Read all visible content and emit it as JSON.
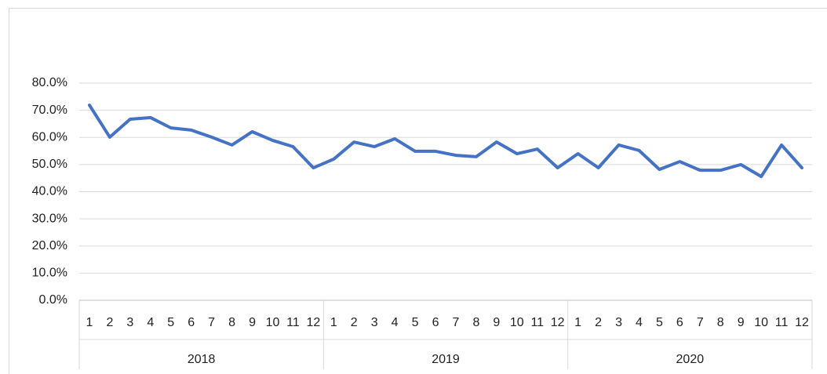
{
  "chart_data": {
    "type": "line",
    "categories": [
      "1",
      "2",
      "3",
      "4",
      "5",
      "6",
      "7",
      "8",
      "9",
      "10",
      "11",
      "12",
      "1",
      "2",
      "3",
      "4",
      "5",
      "6",
      "7",
      "8",
      "9",
      "10",
      "11",
      "12",
      "1",
      "2",
      "3",
      "4",
      "5",
      "6",
      "7",
      "8",
      "9",
      "10",
      "11",
      "12"
    ],
    "groups": [
      "2018",
      "2019",
      "2020"
    ],
    "values": [
      71.9,
      60.1,
      66.7,
      67.3,
      63.5,
      62.7,
      60.1,
      57.2,
      62.1,
      58.9,
      56.6,
      48.8,
      52.0,
      58.3,
      56.6,
      59.5,
      54.9,
      54.9,
      53.4,
      52.9,
      58.3,
      54.0,
      55.7,
      48.8,
      54.0,
      48.8,
      57.2,
      55.2,
      48.2,
      51.1,
      47.9,
      47.9,
      50.0,
      45.6,
      57.2,
      48.8
    ],
    "color": "#4472c4",
    "ylim": [
      0,
      80
    ],
    "yticks": [
      {
        "value": 0,
        "label": "0.0%"
      },
      {
        "value": 10,
        "label": "10.0%"
      },
      {
        "value": 20,
        "label": "20.0%"
      },
      {
        "value": 30,
        "label": "30.0%"
      },
      {
        "value": 40,
        "label": "40.0%"
      },
      {
        "value": 50,
        "label": "50.0%"
      },
      {
        "value": 60,
        "label": "60.0%"
      },
      {
        "value": 70,
        "label": "70.0%"
      },
      {
        "value": 80,
        "label": "80.0%"
      }
    ],
    "grid": true
  }
}
